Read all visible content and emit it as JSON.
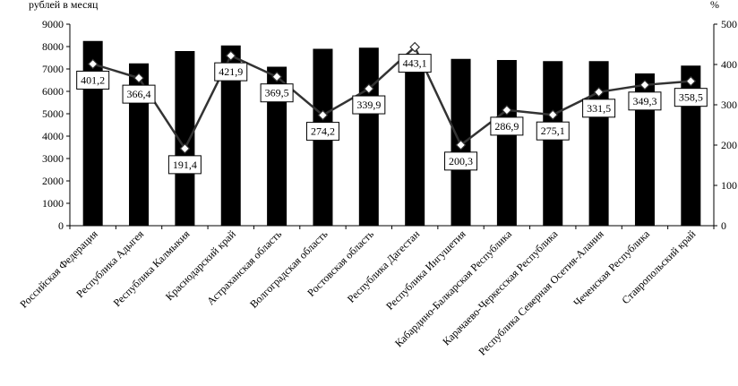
{
  "chart_data": {
    "type": "bar",
    "left_axis_label": "рублей в месяц",
    "right_axis_label": "%",
    "left_axis": {
      "min": 0,
      "max": 9000,
      "step": 1000
    },
    "right_axis": {
      "min": 0,
      "max": 500,
      "step": 100
    },
    "categories": [
      "Российская Федерация",
      "Республика Адыгея",
      "Республика Калмыкия",
      "Краснодарский край",
      "Астраханская область",
      "Волгоградская  область",
      "Ростовская область",
      "Республика Дагестан",
      "Республика Ингушетия",
      "Кабардино-Балкарская Республика",
      "Карачаево-Черкесская Республика",
      "Республика Северная Осетия-Алания",
      "Чеченская Республика",
      "Ставропольский край"
    ],
    "series": [
      {
        "type": "bar",
        "axis": "left",
        "color": "#000000",
        "values": [
          8250,
          7250,
          7800,
          8050,
          7100,
          7900,
          7950,
          7100,
          7450,
          7400,
          7350,
          7350,
          6800,
          7150
        ]
      },
      {
        "type": "line",
        "axis": "right",
        "color": "#333333",
        "values": [
          401.2,
          366.4,
          191.4,
          421.9,
          369.5,
          274.2,
          339.9,
          443.1,
          200.3,
          286.9,
          275.1,
          331.5,
          349.3,
          358.5
        ],
        "data_labels": [
          "401,2",
          "366,4",
          "191,4",
          "421,9",
          "369,5",
          "274,2",
          "339,9",
          "443,1",
          "200,3",
          "286,9",
          "275,1",
          "331,5",
          "349,3",
          "358,5"
        ]
      }
    ],
    "grid": false,
    "legend": "none"
  }
}
